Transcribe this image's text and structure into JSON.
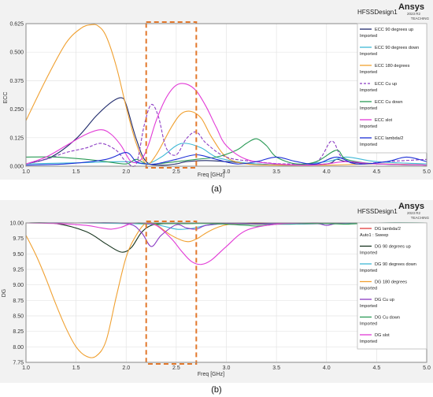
{
  "accent_color": "#e2782c",
  "panels": [
    {
      "header": {
        "design_name": "HFSSDesign1",
        "brand": "Ansys",
        "version": "2023 R2",
        "edition": "TEACHING"
      },
      "caption": "(a)"
    },
    {
      "header": {
        "design_name": "HFSSDesign1",
        "brand": "Ansys",
        "version": "2023 R2",
        "edition": "TEACHING"
      },
      "caption": "(b)"
    }
  ],
  "chart_data": [
    {
      "type": "line",
      "xlabel": "Freq [GHz]",
      "ylabel": "ECC",
      "xlim": [
        1.0,
        5.0
      ],
      "ylim": [
        0.0,
        0.625
      ],
      "x_ticks": [
        "1.0",
        "1.5",
        "2.0",
        "2.5",
        "3.0",
        "3.5",
        "4.0",
        "4.5",
        "5.0"
      ],
      "y_ticks": [
        "0.000",
        "0.125",
        "0.250",
        "0.375",
        "0.500",
        "0.625"
      ],
      "grid": true,
      "legend_position": "top-right",
      "highlight_range_x": [
        2.2,
        2.7
      ],
      "series": [
        {
          "name": "ECC 90 degrees  up",
          "sub": "Imported",
          "color": "#1f2a6b",
          "dash": false,
          "x": [
            1.0,
            1.25,
            1.5,
            1.7,
            1.85,
            1.95,
            2.0,
            2.1,
            2.2,
            2.35,
            2.5,
            2.6,
            2.8,
            3.0,
            3.3,
            3.6,
            4.0,
            4.1,
            4.2,
            4.5,
            5.0
          ],
          "y": [
            0.01,
            0.04,
            0.12,
            0.22,
            0.28,
            0.3,
            0.27,
            0.12,
            0.02,
            0.005,
            0.01,
            0.02,
            0.025,
            0.02,
            0.01,
            0.005,
            0.01,
            0.03,
            0.02,
            0.01,
            0.005
          ]
        },
        {
          "name": "ECC 90 degrees down",
          "sub": "Imported",
          "color": "#3fb8d6",
          "dash": false,
          "x": [
            1.0,
            1.5,
            2.0,
            2.2,
            2.35,
            2.5,
            2.6,
            2.75,
            2.9,
            3.1,
            3.3,
            3.6,
            4.0,
            4.2,
            4.5,
            5.0
          ],
          "y": [
            0.01,
            0.015,
            0.02,
            0.01,
            0.04,
            0.09,
            0.1,
            0.08,
            0.04,
            0.02,
            0.01,
            0.005,
            0.02,
            0.04,
            0.02,
            0.01
          ]
        },
        {
          "name": "ECC 180 degrees",
          "sub": "Imported",
          "color": "#f0a030",
          "dash": false,
          "x": [
            1.0,
            1.2,
            1.4,
            1.55,
            1.65,
            1.72,
            1.8,
            1.9,
            2.0,
            2.1,
            2.2,
            2.3,
            2.45,
            2.55,
            2.65,
            2.75,
            2.85,
            3.0,
            3.2,
            3.5,
            4.0,
            4.5,
            5.0
          ],
          "y": [
            0.2,
            0.38,
            0.54,
            0.605,
            0.62,
            0.615,
            0.57,
            0.44,
            0.26,
            0.1,
            0.01,
            0.05,
            0.17,
            0.23,
            0.24,
            0.21,
            0.13,
            0.04,
            0.01,
            0.005,
            0.005,
            0.01,
            0.005
          ]
        },
        {
          "name": "ECC Cu up",
          "sub": "Imported",
          "color": "#8c3cc4",
          "dash": true,
          "x": [
            1.0,
            1.2,
            1.4,
            1.6,
            1.75,
            1.9,
            2.0,
            2.1,
            2.18,
            2.25,
            2.32,
            2.4,
            2.5,
            2.6,
            2.7,
            2.8,
            3.0,
            3.3,
            3.6,
            3.9,
            4.05,
            4.15,
            4.3,
            4.6,
            5.0
          ],
          "y": [
            0.01,
            0.03,
            0.06,
            0.08,
            0.1,
            0.07,
            0.02,
            0.01,
            0.18,
            0.27,
            0.22,
            0.08,
            0.05,
            0.12,
            0.15,
            0.1,
            0.04,
            0.02,
            0.01,
            0.02,
            0.11,
            0.04,
            0.01,
            0.02,
            0.03
          ]
        },
        {
          "name": "ECC Cu down",
          "sub": "Imported",
          "color": "#2a9a56",
          "dash": false,
          "x": [
            1.0,
            1.3,
            1.6,
            1.8,
            2.0,
            2.1,
            2.2,
            2.3,
            2.5,
            2.7,
            2.9,
            3.1,
            3.2,
            3.3,
            3.4,
            3.5,
            3.7,
            3.9,
            4.1,
            4.2,
            4.5,
            5.0
          ],
          "y": [
            0.04,
            0.04,
            0.03,
            0.02,
            0.01,
            0.03,
            0.01,
            0.01,
            0.02,
            0.03,
            0.04,
            0.07,
            0.1,
            0.12,
            0.09,
            0.04,
            0.01,
            0.02,
            0.07,
            0.03,
            0.01,
            0.005
          ]
        },
        {
          "name": "ECC slot",
          "sub": "Imported",
          "color": "#e23ad6",
          "dash": false,
          "x": [
            1.0,
            1.2,
            1.4,
            1.6,
            1.75,
            1.85,
            1.95,
            2.05,
            2.15,
            2.22,
            2.3,
            2.4,
            2.5,
            2.6,
            2.7,
            2.8,
            2.9,
            3.0,
            3.2,
            3.5,
            3.8,
            4.0,
            4.2,
            4.5,
            5.0
          ],
          "y": [
            0.01,
            0.04,
            0.09,
            0.14,
            0.16,
            0.14,
            0.09,
            0.02,
            0.03,
            0.09,
            0.2,
            0.3,
            0.355,
            0.36,
            0.33,
            0.26,
            0.17,
            0.09,
            0.03,
            0.01,
            0.005,
            0.01,
            0.02,
            0.01,
            0.005
          ]
        },
        {
          "name": "ECC lambda/2",
          "sub": "Imported",
          "color": "#1d2fd6",
          "dash": false,
          "x": [
            1.0,
            1.4,
            1.8,
            2.0,
            2.1,
            2.2,
            2.3,
            2.5,
            2.7,
            2.9,
            3.1,
            3.3,
            3.5,
            3.7,
            3.9,
            4.1,
            4.3,
            4.6,
            4.8,
            5.0
          ],
          "y": [
            0.005,
            0.01,
            0.03,
            0.06,
            0.02,
            0.01,
            0.01,
            0.03,
            0.05,
            0.03,
            0.01,
            0.02,
            0.04,
            0.02,
            0.01,
            0.04,
            0.01,
            0.02,
            0.04,
            0.02
          ]
        }
      ]
    },
    {
      "type": "line",
      "xlabel": "Freq [GHz]",
      "ylabel": "DG",
      "xlim": [
        1.0,
        5.0
      ],
      "ylim": [
        7.75,
        10.0
      ],
      "x_ticks": [
        "1.0",
        "1.5",
        "2.0",
        "2.5",
        "3.0",
        "3.5",
        "4.0",
        "4.5",
        "5.0"
      ],
      "y_ticks": [
        "7.75",
        "8.00",
        "8.25",
        "8.50",
        "8.75",
        "9.00",
        "9.25",
        "9.50",
        "9.75",
        "10.00"
      ],
      "grid": true,
      "legend_position": "top-right",
      "highlight_range_x": [
        2.2,
        2.7
      ],
      "series": [
        {
          "name": "DG lambda/2",
          "sub": "Auto1 : Sweep",
          "color": "#e23b3b",
          "dash": false,
          "x": [
            1.0,
            2.0,
            2.5,
            3.0,
            4.0,
            5.0
          ],
          "y": [
            10.0,
            10.0,
            9.998,
            10.0,
            10.0,
            10.0
          ]
        },
        {
          "name": "DG 90 degrees up",
          "sub": "Imported",
          "color": "#17341e",
          "dash": false,
          "x": [
            1.0,
            1.3,
            1.6,
            1.8,
            1.95,
            2.05,
            2.15,
            2.25,
            2.4,
            2.6,
            2.8,
            3.0,
            3.5,
            4.0,
            4.5,
            5.0
          ],
          "y": [
            10.0,
            9.99,
            9.86,
            9.66,
            9.53,
            9.6,
            9.84,
            9.96,
            9.99,
            9.99,
            10.0,
            9.99,
            9.98,
            9.99,
            10.0,
            10.0
          ]
        },
        {
          "name": "DG 90 degrees down",
          "sub": "Imported",
          "color": "#3fb8d6",
          "dash": false,
          "x": [
            1.0,
            1.5,
            2.0,
            2.3,
            2.5,
            2.65,
            2.8,
            3.0,
            3.3,
            3.6,
            4.0,
            4.5,
            5.0
          ],
          "y": [
            10.0,
            10.0,
            9.99,
            9.97,
            9.9,
            9.91,
            9.96,
            9.99,
            9.99,
            9.98,
            9.99,
            10.0,
            10.0
          ]
        },
        {
          "name": "DG 180 degrees",
          "sub": "Imported",
          "color": "#f0a030",
          "dash": false,
          "x": [
            1.0,
            1.1,
            1.2,
            1.3,
            1.4,
            1.5,
            1.6,
            1.7,
            1.8,
            1.9,
            2.0,
            2.1,
            2.2,
            2.3,
            2.45,
            2.6,
            2.7,
            2.8,
            2.9,
            3.0,
            3.2,
            3.5,
            4.0,
            4.5,
            5.0
          ],
          "y": [
            9.8,
            9.48,
            9.1,
            8.68,
            8.3,
            8.0,
            7.85,
            7.85,
            8.1,
            8.8,
            9.45,
            9.8,
            10.0,
            9.97,
            9.8,
            9.7,
            9.74,
            9.84,
            9.92,
            9.97,
            10.0,
            10.0,
            10.0,
            10.0,
            10.0
          ]
        },
        {
          "name": "DG Cu up",
          "sub": "Imported",
          "color": "#8c3cc4",
          "dash": false,
          "x": [
            1.0,
            1.5,
            2.0,
            2.15,
            2.25,
            2.35,
            2.5,
            2.6,
            2.7,
            2.8,
            3.0,
            3.3,
            3.6,
            3.9,
            4.0,
            4.1,
            4.3,
            4.6,
            5.0
          ],
          "y": [
            10.0,
            10.0,
            9.99,
            9.85,
            9.62,
            9.8,
            9.97,
            9.92,
            9.9,
            9.96,
            9.99,
            9.99,
            9.99,
            9.99,
            9.96,
            9.99,
            10.0,
            9.99,
            9.99
          ]
        },
        {
          "name": "DG Cu down",
          "sub": "Imported",
          "color": "#2a9a56",
          "dash": false,
          "x": [
            1.0,
            1.5,
            2.0,
            2.2,
            2.4,
            2.6,
            2.8,
            3.0,
            3.2,
            3.3,
            3.4,
            3.5,
            3.7,
            4.0,
            4.2,
            4.5,
            5.0
          ],
          "y": [
            10.0,
            10.0,
            10.0,
            9.99,
            9.99,
            9.99,
            9.99,
            9.98,
            9.96,
            9.95,
            9.96,
            9.98,
            9.99,
            9.99,
            9.98,
            10.0,
            10.0
          ]
        },
        {
          "name": "DG slot",
          "sub": "Imported",
          "color": "#e23ad6",
          "dash": false,
          "x": [
            1.0,
            1.3,
            1.6,
            1.75,
            1.85,
            1.95,
            2.05,
            2.15,
            2.3,
            2.45,
            2.55,
            2.65,
            2.75,
            2.85,
            3.0,
            3.2,
            3.5,
            3.8,
            4.0,
            4.5,
            5.0
          ],
          "y": [
            10.0,
            9.99,
            9.96,
            9.92,
            9.9,
            9.93,
            9.99,
            10.0,
            9.96,
            9.75,
            9.55,
            9.38,
            9.33,
            9.4,
            9.62,
            9.88,
            9.98,
            10.0,
            10.0,
            10.0,
            10.0
          ]
        }
      ]
    }
  ]
}
